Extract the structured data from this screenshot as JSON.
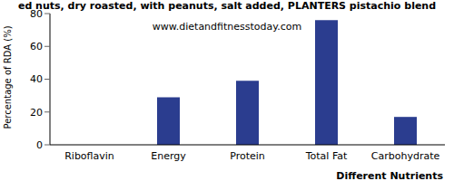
{
  "chart_data": {
    "type": "bar",
    "title": "ed nuts, dry roasted, with peanuts, salt added, PLANTERS pistachio blend",
    "subtitle": "www.dietandfitnesstoday.com",
    "x_label": "Different Nutrients",
    "y_label": "Percentage of RDA (%)",
    "categories": [
      "Riboflavin",
      "Energy",
      "Protein",
      "Total Fat",
      "Carbohydrate"
    ],
    "values": [
      0,
      29,
      39,
      76,
      17
    ],
    "color": "#2b3d8f",
    "ylim": [
      0,
      80
    ],
    "yticks": [
      0,
      20,
      40,
      60,
      80
    ],
    "grid": false
  }
}
